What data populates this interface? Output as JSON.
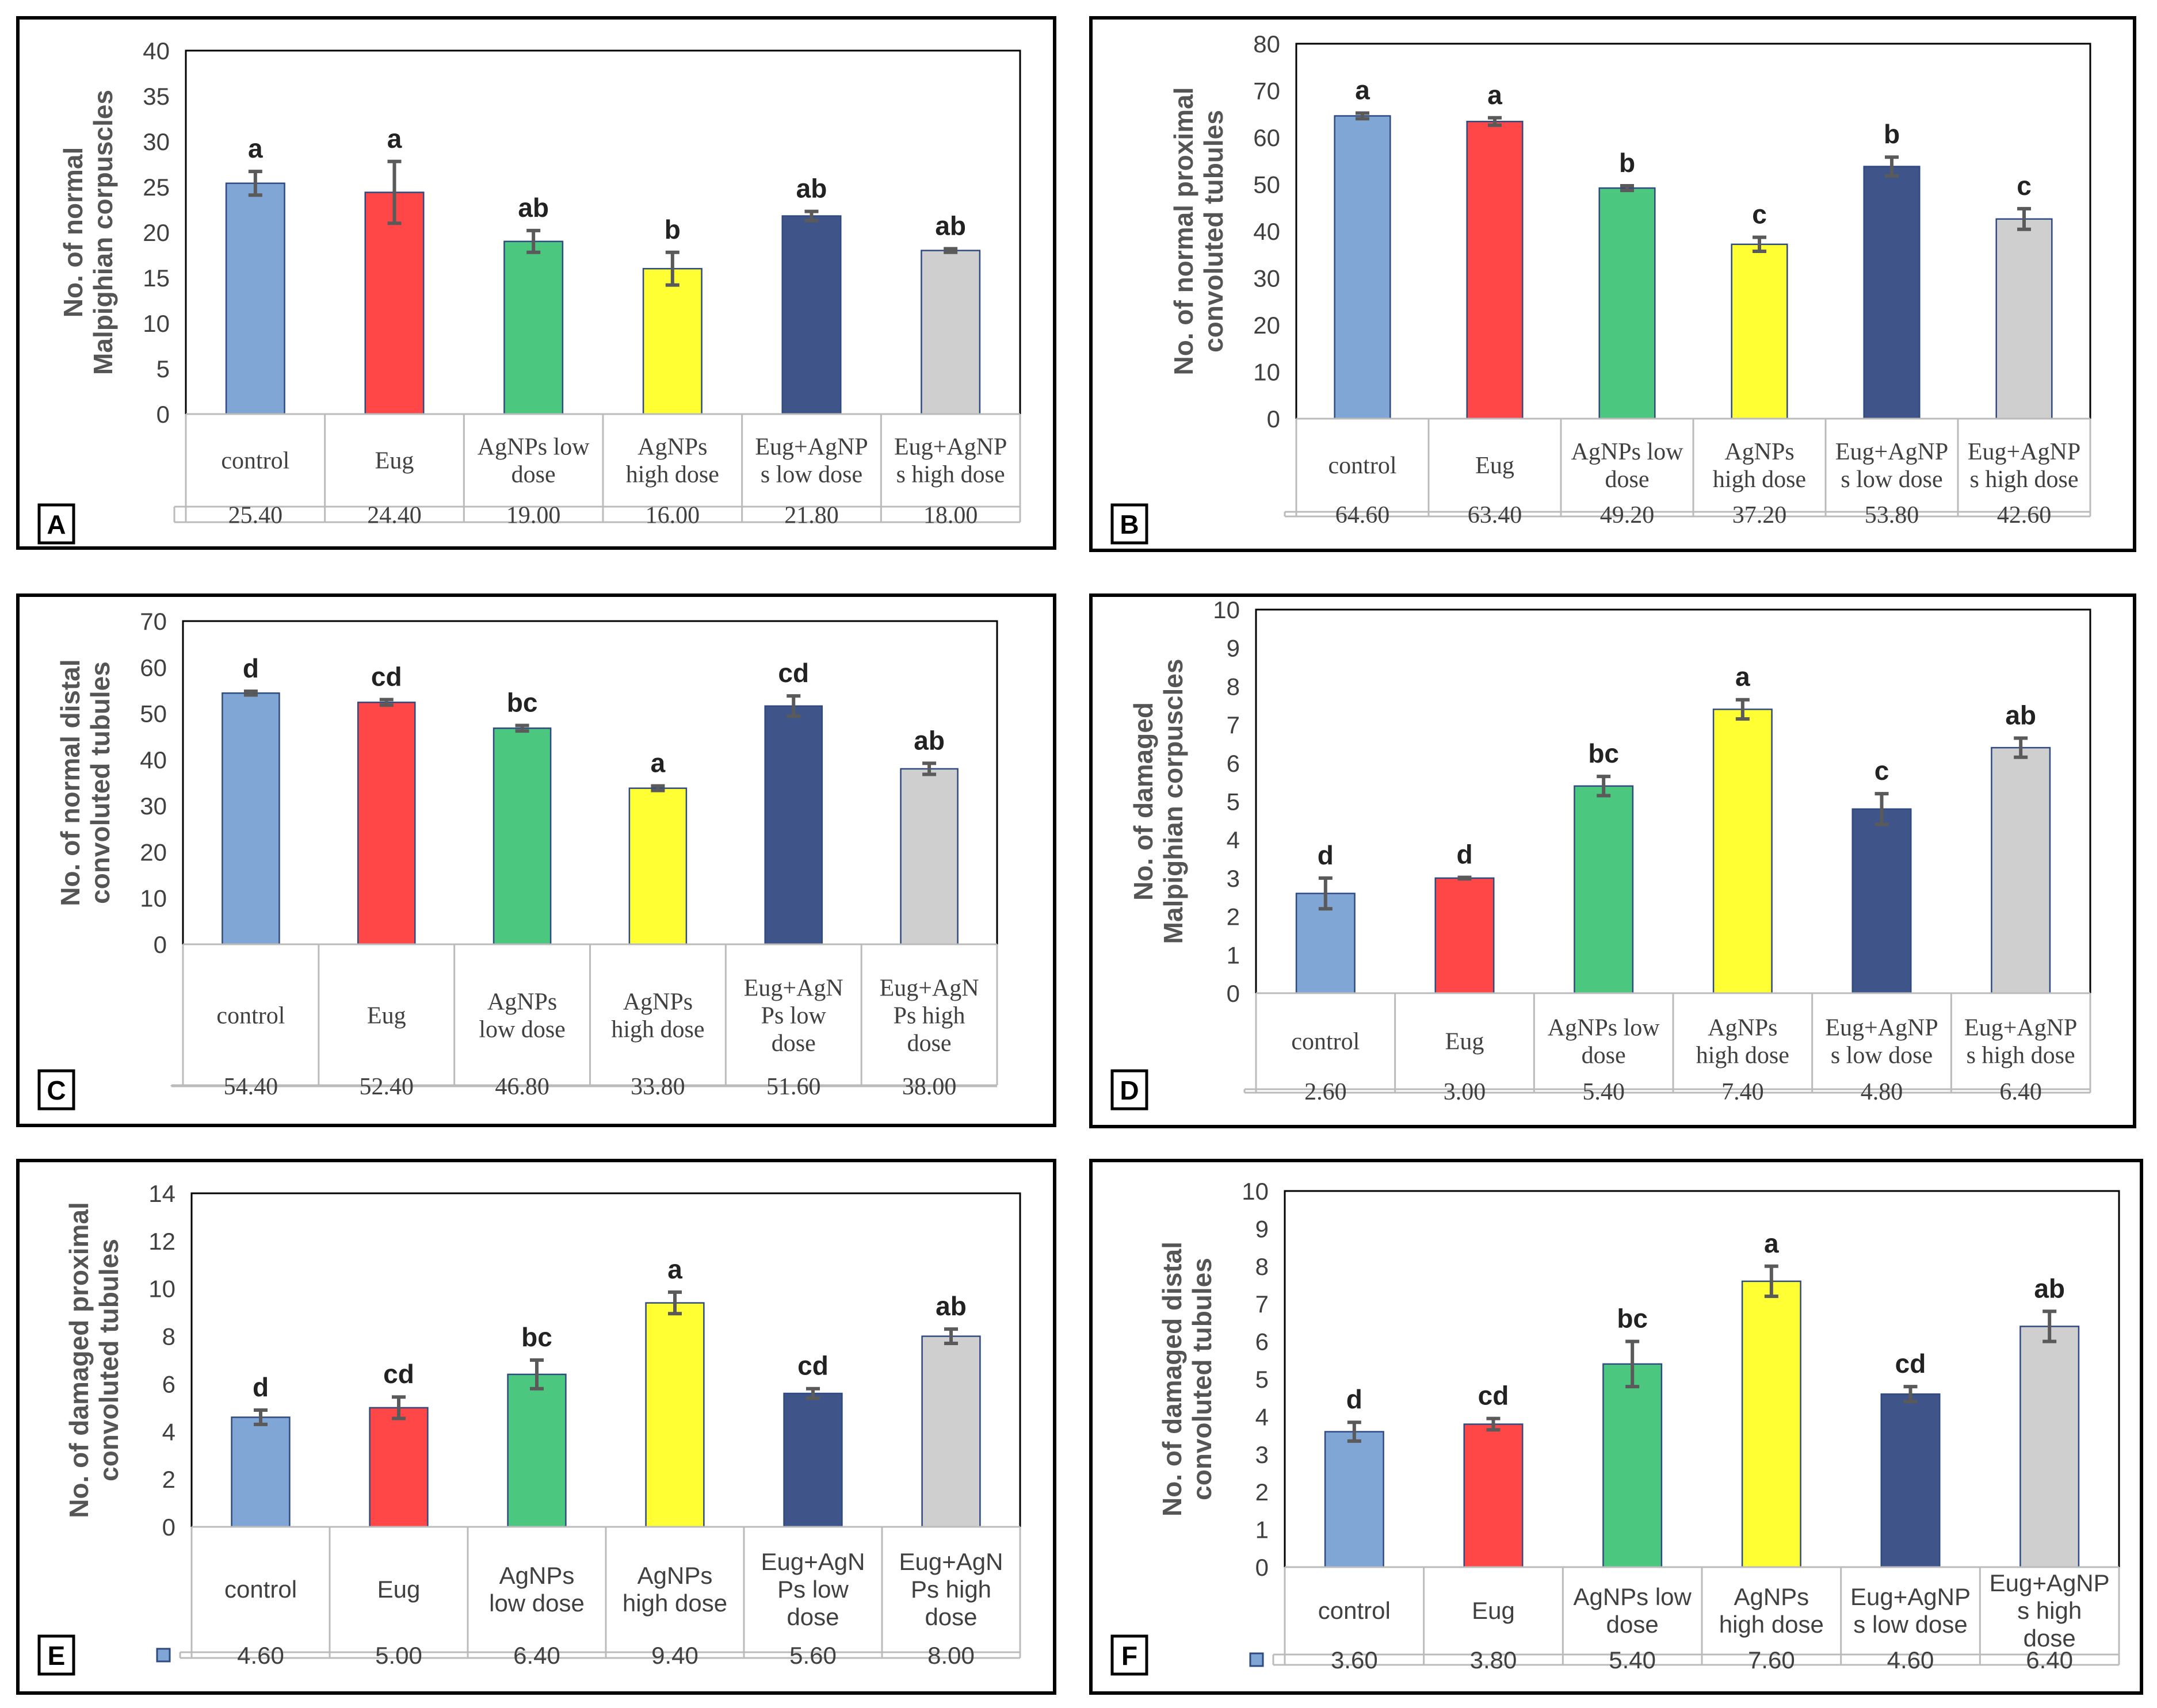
{
  "figure": {
    "title": ""
  },
  "chart_data": [
    {
      "panel_label": "A",
      "type": "bar",
      "title": "",
      "xlabel": "",
      "ylabel": "No. of normal Malpighian corpuscles",
      "ylim": [
        0,
        40
      ],
      "ytick_step": 5,
      "ytick_format": "0",
      "categories": [
        "control",
        "Eug",
        "AgNPs low dose",
        "AgNPs high dose",
        "Eug+AgNPs low dose",
        "Eug+AgNPs high dose"
      ],
      "category_display": [
        [
          "control"
        ],
        [
          "Eug"
        ],
        [
          "AgNPs  low",
          "dose"
        ],
        [
          "AgNPs",
          "high dose"
        ],
        [
          "Eug+AgNP",
          "s  low dose"
        ],
        [
          "Eug+AgNP",
          "s  high dose"
        ]
      ],
      "values": [
        25.4,
        24.4,
        19.0,
        16.0,
        21.8,
        18.0
      ],
      "value_labels": [
        "25.40",
        "24.40",
        "19.00",
        "16.00",
        "21.80",
        "18.00"
      ],
      "errors": [
        1.3,
        3.4,
        1.2,
        1.8,
        0.5,
        0.2
      ],
      "significance_letters": [
        "a",
        "a",
        "ab",
        "b",
        "ab",
        "ab"
      ],
      "table_legend_key": false,
      "table_font": "serif",
      "grid": false
    },
    {
      "panel_label": "B",
      "type": "bar",
      "title": "",
      "xlabel": "",
      "ylabel": "No. of  normal  proximal convoluted tubules",
      "ylim": [
        0,
        80
      ],
      "ytick_step": 10,
      "ytick_format": "0",
      "categories": [
        "control",
        "Eug",
        "AgNPs low dose",
        "AgNPs high dose",
        "Eug+AgNPs low dose",
        "Eug+AgNPs high dose"
      ],
      "category_display": [
        [
          "control"
        ],
        [
          "Eug"
        ],
        [
          "AgNPs  low",
          "dose"
        ],
        [
          "AgNPs",
          "high dose"
        ],
        [
          "Eug+AgNP",
          "s  low dose"
        ],
        [
          "Eug+AgNP",
          "s  high dose"
        ]
      ],
      "values": [
        64.6,
        63.4,
        49.2,
        37.2,
        53.8,
        42.6
      ],
      "value_labels": [
        "64.60",
        "63.40",
        "49.20",
        "37.20",
        "53.80",
        "42.60"
      ],
      "errors": [
        0.6,
        0.8,
        0.5,
        1.5,
        2.0,
        2.2
      ],
      "significance_letters": [
        "a",
        "a",
        "b",
        "c",
        "b",
        "c"
      ],
      "table_legend_key": false,
      "table_font": "serif",
      "grid": false
    },
    {
      "panel_label": "C",
      "type": "bar",
      "title": "",
      "xlabel": "",
      "ylabel": "No. of normal distal convoluted tubules",
      "ylim": [
        0,
        70
      ],
      "ytick_step": 10,
      "ytick_format": "0",
      "categories": [
        "control",
        "Eug",
        "AgNPs low dose",
        "AgNPs high dose",
        "Eug+AgNPs low dose",
        "Eug+AgNPs high dose"
      ],
      "category_display": [
        [
          "control"
        ],
        [
          "Eug"
        ],
        [
          "AgNPs",
          "low dose"
        ],
        [
          "AgNPs",
          "high dose"
        ],
        [
          "Eug+AgN",
          "Ps low",
          "dose"
        ],
        [
          "Eug+AgN",
          "Ps high",
          "dose"
        ]
      ],
      "values": [
        54.4,
        52.4,
        46.8,
        33.8,
        51.6,
        38.0
      ],
      "value_labels": [
        "54.40",
        "52.40",
        "46.80",
        "33.80",
        "51.60",
        "38.00"
      ],
      "errors": [
        0.4,
        0.6,
        0.6,
        0.5,
        2.2,
        1.2
      ],
      "significance_letters": [
        "d",
        "cd",
        "bc",
        "a",
        "cd",
        "ab"
      ],
      "table_legend_key": false,
      "table_font": "serif",
      "grid": false
    },
    {
      "panel_label": "D",
      "type": "bar",
      "title": "",
      "xlabel": "",
      "ylabel": "No. of damaged Malpighian corpuscles",
      "ylim": [
        0,
        10
      ],
      "ytick_step": 1,
      "ytick_format": "0",
      "categories": [
        "control",
        "Eug",
        "AgNPs low dose",
        "AgNPs high dose",
        "Eug+AgNPs low dose",
        "Eug+AgNPs high dose"
      ],
      "category_display": [
        [
          "control"
        ],
        [
          "Eug"
        ],
        [
          "AgNPs  low",
          "dose"
        ],
        [
          "AgNPs",
          "high dose"
        ],
        [
          "Eug+AgNP",
          "s  low dose"
        ],
        [
          "Eug+AgNP",
          "s  high dose"
        ]
      ],
      "values": [
        2.6,
        3.0,
        5.4,
        7.4,
        4.8,
        6.4
      ],
      "value_labels": [
        "2.60",
        "3.00",
        "5.40",
        "7.40",
        "4.80",
        "6.40"
      ],
      "errors": [
        0.4,
        0.02,
        0.25,
        0.25,
        0.4,
        0.25
      ],
      "significance_letters": [
        "d",
        "d",
        "bc",
        "a",
        "c",
        "ab"
      ],
      "table_legend_key": false,
      "table_font": "serif",
      "grid": false
    },
    {
      "panel_label": "E",
      "type": "bar",
      "title": "",
      "xlabel": "",
      "ylabel": "No. of damaged proximal convoluted tubules",
      "ylim": [
        0,
        14
      ],
      "ytick_step": 2,
      "ytick_format": "0",
      "categories": [
        "control",
        "Eug",
        "AgNPs low dose",
        "AgNPs high dose",
        "Eug+AgNPs low dose",
        "Eug+AgNPs high dose"
      ],
      "category_display": [
        [
          "control"
        ],
        [
          "Eug"
        ],
        [
          "AgNPs",
          "low dose"
        ],
        [
          "AgNPs",
          "high dose"
        ],
        [
          "Eug+AgN",
          "Ps low",
          "dose"
        ],
        [
          "Eug+AgN",
          "Ps high",
          "dose"
        ]
      ],
      "values": [
        4.6,
        5.0,
        6.4,
        9.4,
        5.6,
        8.0
      ],
      "value_labels": [
        "4.60",
        "5.00",
        "6.40",
        "9.40",
        "5.60",
        "8.00"
      ],
      "errors": [
        0.3,
        0.45,
        0.6,
        0.45,
        0.2,
        0.3
      ],
      "significance_letters": [
        "d",
        "cd",
        "bc",
        "a",
        "cd",
        "ab"
      ],
      "table_legend_key": true,
      "table_font": "sans",
      "grid": false
    },
    {
      "panel_label": "F",
      "type": "bar",
      "title": "",
      "xlabel": "",
      "ylabel": "No. of damaged distal convoluted tubules",
      "ylim": [
        0,
        10
      ],
      "ytick_step": 1,
      "ytick_format": "0",
      "categories": [
        "control",
        "Eug",
        "AgNPs low dose",
        "AgNPs high dose",
        "Eug+AgNPs low dose",
        "Eug+AgNPs high dose"
      ],
      "category_display": [
        [
          "control"
        ],
        [
          "Eug"
        ],
        [
          "AgNPs  low",
          "dose"
        ],
        [
          "AgNPs",
          "high dose"
        ],
        [
          "Eug+AgNP",
          "s  low dose"
        ],
        [
          "Eug+AgNP",
          "s  high",
          "dose"
        ]
      ],
      "values": [
        3.6,
        3.8,
        5.4,
        7.6,
        4.6,
        6.4
      ],
      "value_labels": [
        "3.60",
        "3.80",
        "5.40",
        "7.60",
        "4.60",
        "6.40"
      ],
      "errors": [
        0.25,
        0.15,
        0.6,
        0.4,
        0.2,
        0.4
      ],
      "significance_letters": [
        "d",
        "cd",
        "bc",
        "a",
        "cd",
        "ab"
      ],
      "table_legend_key": true,
      "table_font": "sans",
      "grid": false
    }
  ],
  "colors": {
    "bars": [
      "#7FA6D4",
      "#FF4747",
      "#4CC77F",
      "#FFFF33",
      "#3F5589",
      "#CFCFCF"
    ],
    "bar_outline": "#2F4A80",
    "error_bar": "#5A5A5A",
    "text": "#222222",
    "axis_text": "#404040",
    "ylabel_text": "#555555",
    "panel_border": "#000000",
    "plot_border": "#808080",
    "table_grid": "#BBBBBB"
  }
}
